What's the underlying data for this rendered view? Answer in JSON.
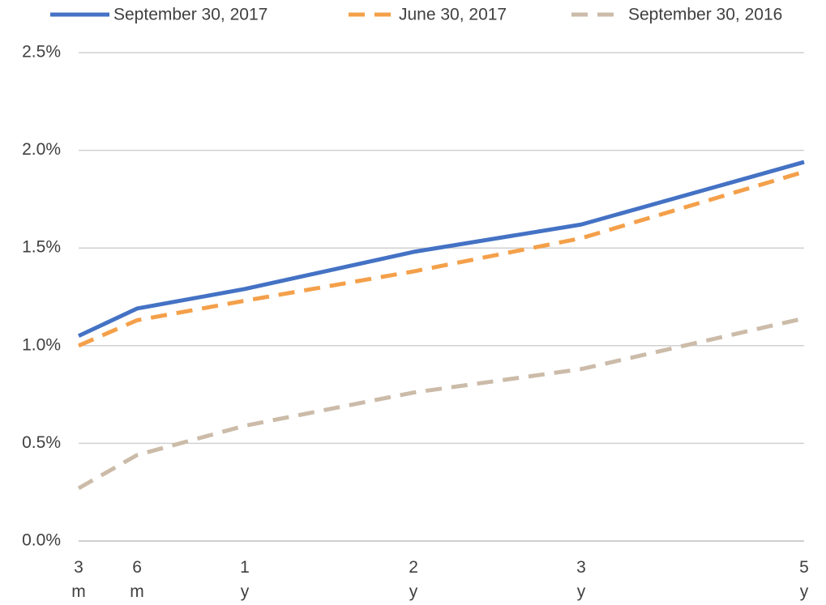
{
  "chart_data": {
    "type": "line",
    "categories": [
      "3 m",
      "6 m",
      "1 y",
      "2 y",
      "3 y",
      "5 y"
    ],
    "series": [
      {
        "name": "September 30, 2017",
        "color": "#4472c4",
        "dashed": false,
        "values": [
          1.05,
          1.19,
          1.29,
          1.48,
          1.62,
          1.94
        ]
      },
      {
        "name": "June 30, 2017",
        "color": "#f4a04a",
        "dashed": true,
        "values": [
          1.0,
          1.13,
          1.23,
          1.38,
          1.55,
          1.89
        ]
      },
      {
        "name": "September 30, 2016",
        "color": "#cbbba8",
        "dashed": true,
        "values": [
          0.27,
          0.44,
          0.59,
          0.76,
          0.88,
          1.14
        ]
      }
    ],
    "ylim": [
      0,
      2.5
    ],
    "yticks": [
      {
        "value": 0,
        "label": "0.0%"
      },
      {
        "value": 0.5,
        "label": "0.5%"
      },
      {
        "value": 1,
        "label": "1.0%"
      },
      {
        "value": 1.5,
        "label": "1.5%"
      },
      {
        "value": 2,
        "label": "2.0%"
      },
      {
        "value": 2.5,
        "label": "2.5%"
      }
    ],
    "grid": true,
    "legend": "top"
  }
}
